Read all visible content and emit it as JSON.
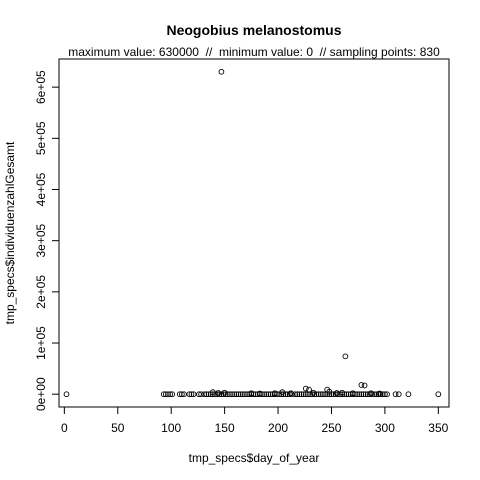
{
  "chart_data": {
    "type": "scatter",
    "title": "Neogobius melanostomus",
    "subtitle": "maximum value: 630000  //  minimum value: 0  // sampling points: 830",
    "xlabel": "tmp_specs$day_of_year",
    "ylabel": "tmp_specs$individuenzahlGesamt",
    "xlim": [
      -5,
      360
    ],
    "ylim": [
      -25000,
      655000
    ],
    "x_ticks": [
      0,
      50,
      100,
      150,
      200,
      250,
      300,
      350
    ],
    "x_tick_labels": [
      "0",
      "50",
      "100",
      "150",
      "200",
      "250",
      "300",
      "350"
    ],
    "y_ticks": [
      0,
      100000,
      200000,
      300000,
      400000,
      500000,
      600000
    ],
    "y_tick_labels": [
      "0e+00",
      "1e+05",
      "2e+05",
      "3e+05",
      "4e+05",
      "5e+05",
      "6e+05"
    ],
    "grid": false,
    "legend": "none",
    "points": [
      [
        2,
        0
      ],
      [
        93,
        0
      ],
      [
        95,
        0
      ],
      [
        97,
        0
      ],
      [
        99,
        0
      ],
      [
        101,
        0
      ],
      [
        108,
        0
      ],
      [
        110,
        0
      ],
      [
        112,
        0
      ],
      [
        117,
        0
      ],
      [
        119,
        0
      ],
      [
        121,
        0
      ],
      [
        126,
        0
      ],
      [
        128,
        0
      ],
      [
        131,
        0
      ],
      [
        133,
        0
      ],
      [
        135,
        0
      ],
      [
        137,
        0
      ],
      [
        139,
        0
      ],
      [
        141,
        0
      ],
      [
        143,
        0
      ],
      [
        145,
        0
      ],
      [
        147,
        0
      ],
      [
        149,
        0
      ],
      [
        151,
        0
      ],
      [
        153,
        0
      ],
      [
        155,
        0
      ],
      [
        157,
        0
      ],
      [
        159,
        0
      ],
      [
        161,
        0
      ],
      [
        163,
        0
      ],
      [
        165,
        0
      ],
      [
        167,
        0
      ],
      [
        169,
        0
      ],
      [
        171,
        0
      ],
      [
        173,
        0
      ],
      [
        175,
        0
      ],
      [
        177,
        0
      ],
      [
        179,
        0
      ],
      [
        181,
        0
      ],
      [
        183,
        0
      ],
      [
        185,
        0
      ],
      [
        187,
        0
      ],
      [
        189,
        0
      ],
      [
        191,
        0
      ],
      [
        193,
        0
      ],
      [
        195,
        0
      ],
      [
        197,
        0
      ],
      [
        199,
        0
      ],
      [
        201,
        0
      ],
      [
        203,
        0
      ],
      [
        205,
        0
      ],
      [
        207,
        0
      ],
      [
        209,
        0
      ],
      [
        211,
        0
      ],
      [
        213,
        0
      ],
      [
        216,
        0
      ],
      [
        218,
        0
      ],
      [
        220,
        0
      ],
      [
        222,
        0
      ],
      [
        224,
        0
      ],
      [
        226,
        0
      ],
      [
        228,
        0
      ],
      [
        230,
        0
      ],
      [
        232,
        0
      ],
      [
        234,
        0
      ],
      [
        236,
        0
      ],
      [
        238,
        0
      ],
      [
        240,
        0
      ],
      [
        242,
        0
      ],
      [
        244,
        0
      ],
      [
        246,
        0
      ],
      [
        248,
        0
      ],
      [
        250,
        0
      ],
      [
        252,
        0
      ],
      [
        254,
        0
      ],
      [
        256,
        0
      ],
      [
        258,
        0
      ],
      [
        260,
        0
      ],
      [
        262,
        0
      ],
      [
        264,
        0
      ],
      [
        266,
        0
      ],
      [
        268,
        0
      ],
      [
        270,
        0
      ],
      [
        272,
        0
      ],
      [
        274,
        0
      ],
      [
        276,
        0
      ],
      [
        278,
        0
      ],
      [
        280,
        0
      ],
      [
        282,
        0
      ],
      [
        284,
        0
      ],
      [
        286,
        0
      ],
      [
        288,
        0
      ],
      [
        290,
        0
      ],
      [
        292,
        0
      ],
      [
        294,
        0
      ],
      [
        296,
        0
      ],
      [
        298,
        0
      ],
      [
        300,
        0
      ],
      [
        302,
        0
      ],
      [
        310,
        0
      ],
      [
        313,
        0
      ],
      [
        322,
        0
      ],
      [
        350,
        0
      ],
      [
        139,
        4000
      ],
      [
        144,
        2500
      ],
      [
        150,
        3000
      ],
      [
        175,
        2000
      ],
      [
        183,
        1500
      ],
      [
        197,
        2000
      ],
      [
        204,
        4000
      ],
      [
        212,
        2000
      ],
      [
        226,
        11000
      ],
      [
        229,
        9000
      ],
      [
        233,
        3000
      ],
      [
        246,
        9000
      ],
      [
        248,
        5000
      ],
      [
        255,
        2500
      ],
      [
        260,
        3000
      ],
      [
        270,
        2000
      ],
      [
        278,
        18000
      ],
      [
        281,
        17000
      ],
      [
        287,
        2000
      ],
      [
        295,
        1500
      ],
      [
        263,
        74000
      ],
      [
        147,
        630000
      ]
    ]
  }
}
